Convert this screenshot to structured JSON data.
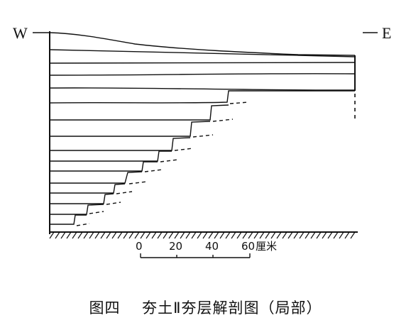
{
  "directions": {
    "west": "W",
    "east": "E"
  },
  "scale_bar": {
    "ticks": [
      "0",
      "20",
      "40",
      "60"
    ],
    "unit": "厘米"
  },
  "caption": {
    "fig_no": "图四",
    "title": "夯土Ⅱ夯层解剖图（局部）"
  },
  "style": {
    "ink": "#111111",
    "background": "#ffffff"
  }
}
